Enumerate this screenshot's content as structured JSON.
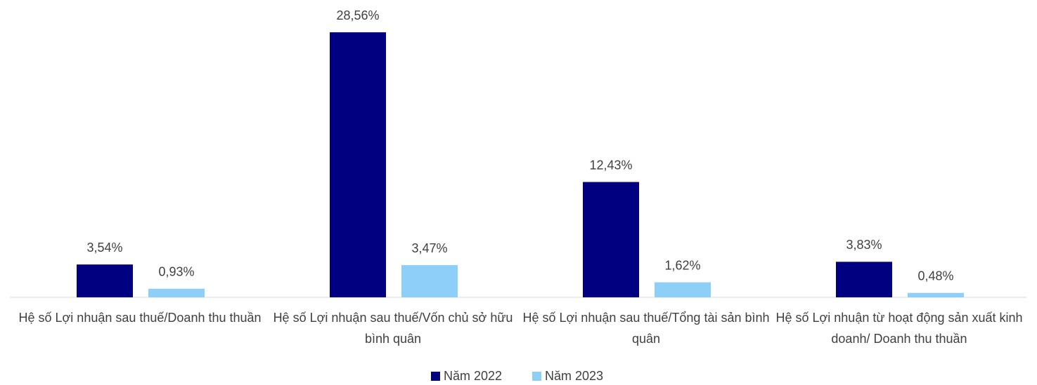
{
  "chart_data": {
    "type": "bar",
    "categories": [
      "Hệ số Lợi nhuận sau thuế/Doanh thu thuần",
      "Hệ số Lợi nhuận sau thuế/Vốn chủ sở hữu bình quân",
      "Hệ số Lợi nhuận sau thuế/Tổng tài sản bình quân",
      "Hệ số Lợi nhuận từ hoạt động sản xuất kinh doanh/ Doanh thu thuần"
    ],
    "series": [
      {
        "name": "Năm 2022",
        "color": "#000080",
        "values": [
          3.54,
          28.56,
          12.43,
          3.83
        ],
        "value_labels": [
          "3,54%",
          "28,56%",
          "12,43%",
          "3,83%"
        ]
      },
      {
        "name": "Năm 2023",
        "color": "#8ecff7",
        "values": [
          0.93,
          3.47,
          1.62,
          0.48
        ],
        "value_labels": [
          "0,93%",
          "3,47%",
          "1,62%",
          "0,48%"
        ]
      }
    ],
    "ylim": [
      0,
      30
    ],
    "legend": "bottom"
  }
}
